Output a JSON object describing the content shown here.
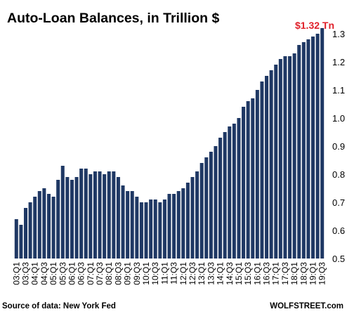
{
  "chart_data": {
    "type": "bar",
    "title": "Auto-Loan Balances, in Trillion $",
    "annotation": "$1.32 Tn",
    "source": "Source of data: New York Fed",
    "brand": "WOLFSTREET.com",
    "ylim": [
      0.5,
      1.3
    ],
    "yticks": [
      "0.5",
      "0.6",
      "0.7",
      "0.8",
      "0.9",
      "1.0",
      "1.1",
      "1.2",
      "1.3"
    ],
    "ytick_values": [
      0.5,
      0.6,
      0.7,
      0.8,
      0.9,
      1.0,
      1.1,
      1.2,
      1.3
    ],
    "bar_color": "#1f3864",
    "annotation_color": "#e0202a",
    "grid": false,
    "categories": [
      "03:Q1",
      "03:Q2",
      "03:Q3",
      "03:Q4",
      "04:Q1",
      "04:Q2",
      "04:Q3",
      "04:Q4",
      "05:Q1",
      "05:Q2",
      "05:Q3",
      "05:Q4",
      "06:Q1",
      "06:Q2",
      "06:Q3",
      "06:Q4",
      "07:Q1",
      "07:Q2",
      "07:Q3",
      "07:Q4",
      "08:Q1",
      "08:Q2",
      "08:Q3",
      "08:Q4",
      "09:Q1",
      "09:Q2",
      "09:Q3",
      "09:Q4",
      "10:Q1",
      "10:Q2",
      "10:Q3",
      "10:Q4",
      "11:Q1",
      "11:Q2",
      "11:Q3",
      "11:Q4",
      "12:Q1",
      "12:Q2",
      "12:Q3",
      "12:Q4",
      "13:Q1",
      "13:Q2",
      "13:Q3",
      "13:Q4",
      "14:Q1",
      "14:Q2",
      "14:Q3",
      "14:Q4",
      "15:Q1",
      "15:Q2",
      "15:Q3",
      "15:Q4",
      "16:Q1",
      "16:Q2",
      "16:Q3",
      "16:Q4",
      "17:Q1",
      "17:Q2",
      "17:Q3",
      "17:Q4",
      "18:Q1",
      "18:Q2",
      "18:Q3",
      "18:Q4",
      "19:Q1",
      "19:Q2",
      "19:Q3"
    ],
    "xtick_labels": [
      "03:Q1",
      "03:Q3",
      "04:Q1",
      "04:Q3",
      "05:Q1",
      "05:Q3",
      "06:Q1",
      "06:Q3",
      "07:Q1",
      "07:Q3",
      "08:Q1",
      "08:Q3",
      "09:Q1",
      "09:Q3",
      "10:Q1",
      "10:Q3",
      "11:Q1",
      "11:Q3",
      "12:Q1",
      "12:Q3",
      "13:Q1",
      "13:Q3",
      "14:Q1",
      "14:Q3",
      "15:Q1",
      "15:Q3",
      "16:Q1",
      "16:Q3",
      "17:Q1",
      "17:Q3",
      "18:Q1",
      "18:Q3",
      "19:Q1",
      "19:Q3"
    ],
    "values": [
      0.64,
      0.62,
      0.68,
      0.7,
      0.72,
      0.74,
      0.75,
      0.73,
      0.72,
      0.78,
      0.83,
      0.79,
      0.78,
      0.79,
      0.82,
      0.82,
      0.8,
      0.81,
      0.81,
      0.8,
      0.81,
      0.81,
      0.79,
      0.76,
      0.74,
      0.74,
      0.72,
      0.7,
      0.7,
      0.71,
      0.71,
      0.7,
      0.71,
      0.73,
      0.73,
      0.74,
      0.75,
      0.77,
      0.79,
      0.81,
      0.84,
      0.86,
      0.88,
      0.9,
      0.93,
      0.95,
      0.97,
      0.98,
      1.0,
      1.04,
      1.06,
      1.07,
      1.1,
      1.13,
      1.15,
      1.17,
      1.19,
      1.21,
      1.22,
      1.22,
      1.23,
      1.26,
      1.27,
      1.28,
      1.29,
      1.3,
      1.32
    ]
  }
}
